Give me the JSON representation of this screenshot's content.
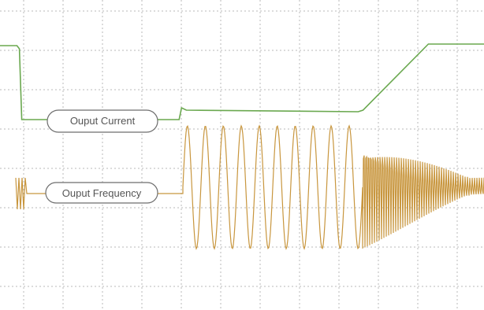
{
  "chart_data": {
    "type": "line",
    "title": "",
    "xlabel": "",
    "ylabel": "",
    "grid": true,
    "series": [
      {
        "name": "Ouput Current",
        "color": "#6aa84f",
        "points": [
          [
            0.0,
            58
          ],
          [
            0.035,
            58
          ],
          [
            0.04,
            62
          ],
          [
            0.045,
            152
          ],
          [
            0.37,
            152
          ],
          [
            0.375,
            137
          ],
          [
            0.385,
            140
          ],
          [
            0.74,
            142
          ],
          [
            0.75,
            140
          ],
          [
            0.885,
            56
          ],
          [
            1.0,
            56
          ]
        ]
      },
      {
        "name": "Ouput Frequency",
        "color": "#c8963e",
        "segments": {
          "flat_level": 246,
          "oscillation_center": 238,
          "oscillation_amplitude": 78,
          "slow_oscillation_cycles": 10,
          "burst_decay_end": 0.97
        }
      }
    ]
  },
  "labels": {
    "current": "Ouput Current",
    "frequency": "Ouput Frequency"
  }
}
